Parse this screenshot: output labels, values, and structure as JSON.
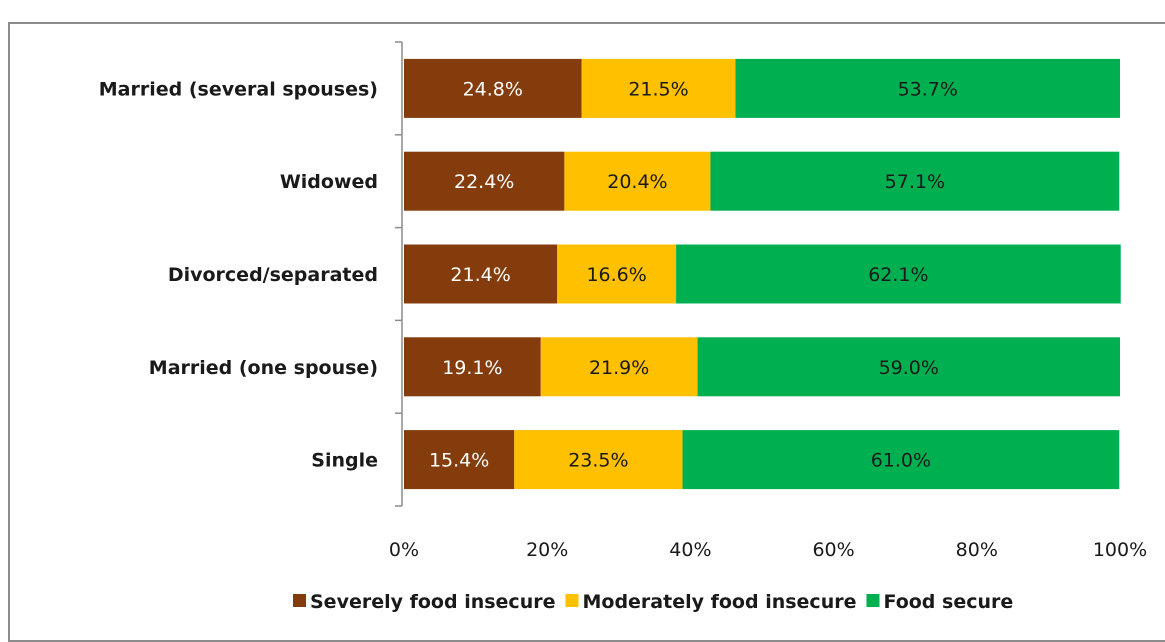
{
  "chart_data": {
    "type": "bar",
    "orientation": "horizontal",
    "stacked": true,
    "percent_stacked": true,
    "categories": [
      "Married (several spouses)",
      "Widowed",
      "Divorced/separated",
      "Married (one spouse)",
      "Single"
    ],
    "series": [
      {
        "name": "Severely food insecure",
        "color": "#843c0c",
        "label_color": "#ffffff",
        "values": [
          24.8,
          22.4,
          21.4,
          19.1,
          15.4
        ],
        "labels": [
          "24.8%",
          "22.4%",
          "21.4%",
          "19.1%",
          "15.4%"
        ]
      },
      {
        "name": "Moderately food insecure",
        "color": "#ffc000",
        "label_color": "#1a1a1a",
        "values": [
          21.5,
          20.4,
          16.6,
          21.9,
          23.5
        ],
        "labels": [
          "21.5%",
          "20.4%",
          "16.6%",
          "21.9%",
          "23.5%"
        ]
      },
      {
        "name": "Food secure",
        "color": "#00b050",
        "label_color": "#1a1a1a",
        "values": [
          53.7,
          57.1,
          62.1,
          59.0,
          61.0
        ],
        "labels": [
          "53.7%",
          "57.1%",
          "62.1%",
          "59.0%",
          "61.0%"
        ]
      }
    ],
    "x_ticks": [
      0,
      20,
      40,
      60,
      80,
      100
    ],
    "x_tick_labels": [
      "0%",
      "20%",
      "40%",
      "60%",
      "80%",
      "100%"
    ],
    "xlim": [
      0,
      100
    ],
    "grid": false,
    "legend_position": "bottom"
  }
}
